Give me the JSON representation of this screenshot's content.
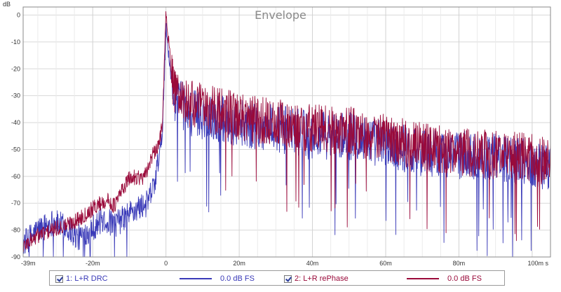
{
  "chart_data": {
    "type": "line",
    "title": "Envelope",
    "ylabel": "dB",
    "xlabel": "",
    "x_unit": "s",
    "xlim": [
      -0.039,
      0.105
    ],
    "ylim": [
      -90,
      3
    ],
    "grid": true,
    "x_ticks": [
      {
        "value": -0.039,
        "label": "-39m"
      },
      {
        "value": -0.02,
        "label": "-20m"
      },
      {
        "value": 0,
        "label": "0"
      },
      {
        "value": 0.02,
        "label": "20m"
      },
      {
        "value": 0.04,
        "label": "40m"
      },
      {
        "value": 0.06,
        "label": "60m"
      },
      {
        "value": 0.08,
        "label": "80m"
      },
      {
        "value": 0.1,
        "label": "100m s"
      }
    ],
    "y_ticks": [
      0,
      -10,
      -20,
      -30,
      -40,
      -50,
      -60,
      -70,
      -80,
      -90
    ],
    "series": [
      {
        "name": "1: L+R DRC",
        "color": "#3a3ab8",
        "level": "0.0 dB FS",
        "envelope": [
          {
            "x": -0.039,
            "y": -85
          },
          {
            "x": -0.035,
            "y": -80
          },
          {
            "x": -0.031,
            "y": -77
          },
          {
            "x": -0.027,
            "y": -79
          },
          {
            "x": -0.024,
            "y": -83
          },
          {
            "x": -0.02,
            "y": -79
          },
          {
            "x": -0.017,
            "y": -76
          },
          {
            "x": -0.014,
            "y": -78
          },
          {
            "x": -0.011,
            "y": -75
          },
          {
            "x": -0.008,
            "y": -72
          },
          {
            "x": -0.005,
            "y": -70
          },
          {
            "x": -0.003,
            "y": -62
          },
          {
            "x": -0.001,
            "y": -45
          },
          {
            "x": 0,
            "y": -5
          },
          {
            "x": 0.002,
            "y": -30
          },
          {
            "x": 0.006,
            "y": -36
          },
          {
            "x": 0.012,
            "y": -38
          },
          {
            "x": 0.02,
            "y": -40
          },
          {
            "x": 0.03,
            "y": -42
          },
          {
            "x": 0.04,
            "y": -45
          },
          {
            "x": 0.05,
            "y": -45
          },
          {
            "x": 0.06,
            "y": -48
          },
          {
            "x": 0.07,
            "y": -51
          },
          {
            "x": 0.08,
            "y": -52
          },
          {
            "x": 0.09,
            "y": -53
          },
          {
            "x": 0.1,
            "y": -55
          },
          {
            "x": 0.105,
            "y": -57
          }
        ]
      },
      {
        "name": "2: L+R rePhase",
        "color": "#9a0a3a",
        "level": "0.0 dB FS",
        "envelope": [
          {
            "x": -0.039,
            "y": -86
          },
          {
            "x": -0.035,
            "y": -82
          },
          {
            "x": -0.031,
            "y": -80
          },
          {
            "x": -0.027,
            "y": -78
          },
          {
            "x": -0.024,
            "y": -76
          },
          {
            "x": -0.021,
            "y": -73
          },
          {
            "x": -0.018,
            "y": -70
          },
          {
            "x": -0.016,
            "y": -69
          },
          {
            "x": -0.014,
            "y": -71
          },
          {
            "x": -0.012,
            "y": -65
          },
          {
            "x": -0.01,
            "y": -61
          },
          {
            "x": -0.008,
            "y": -60
          },
          {
            "x": -0.006,
            "y": -61
          },
          {
            "x": -0.004,
            "y": -53
          },
          {
            "x": -0.002,
            "y": -49
          },
          {
            "x": -0.001,
            "y": -40
          },
          {
            "x": 0,
            "y": 0
          },
          {
            "x": 0.002,
            "y": -28
          },
          {
            "x": 0.006,
            "y": -33
          },
          {
            "x": 0.012,
            "y": -35
          },
          {
            "x": 0.02,
            "y": -38
          },
          {
            "x": 0.03,
            "y": -40
          },
          {
            "x": 0.04,
            "y": -42
          },
          {
            "x": 0.05,
            "y": -43
          },
          {
            "x": 0.06,
            "y": -46
          },
          {
            "x": 0.07,
            "y": -49
          },
          {
            "x": 0.08,
            "y": -51
          },
          {
            "x": 0.09,
            "y": -52
          },
          {
            "x": 0.1,
            "y": -53
          },
          {
            "x": 0.105,
            "y": -55
          }
        ]
      }
    ]
  },
  "legend": {
    "items": [
      {
        "label": "1: L+R DRC",
        "level": "0.0 dB FS",
        "checked": true
      },
      {
        "label": "2: L+R rePhase",
        "level": "0.0 dB FS",
        "checked": true
      }
    ]
  }
}
